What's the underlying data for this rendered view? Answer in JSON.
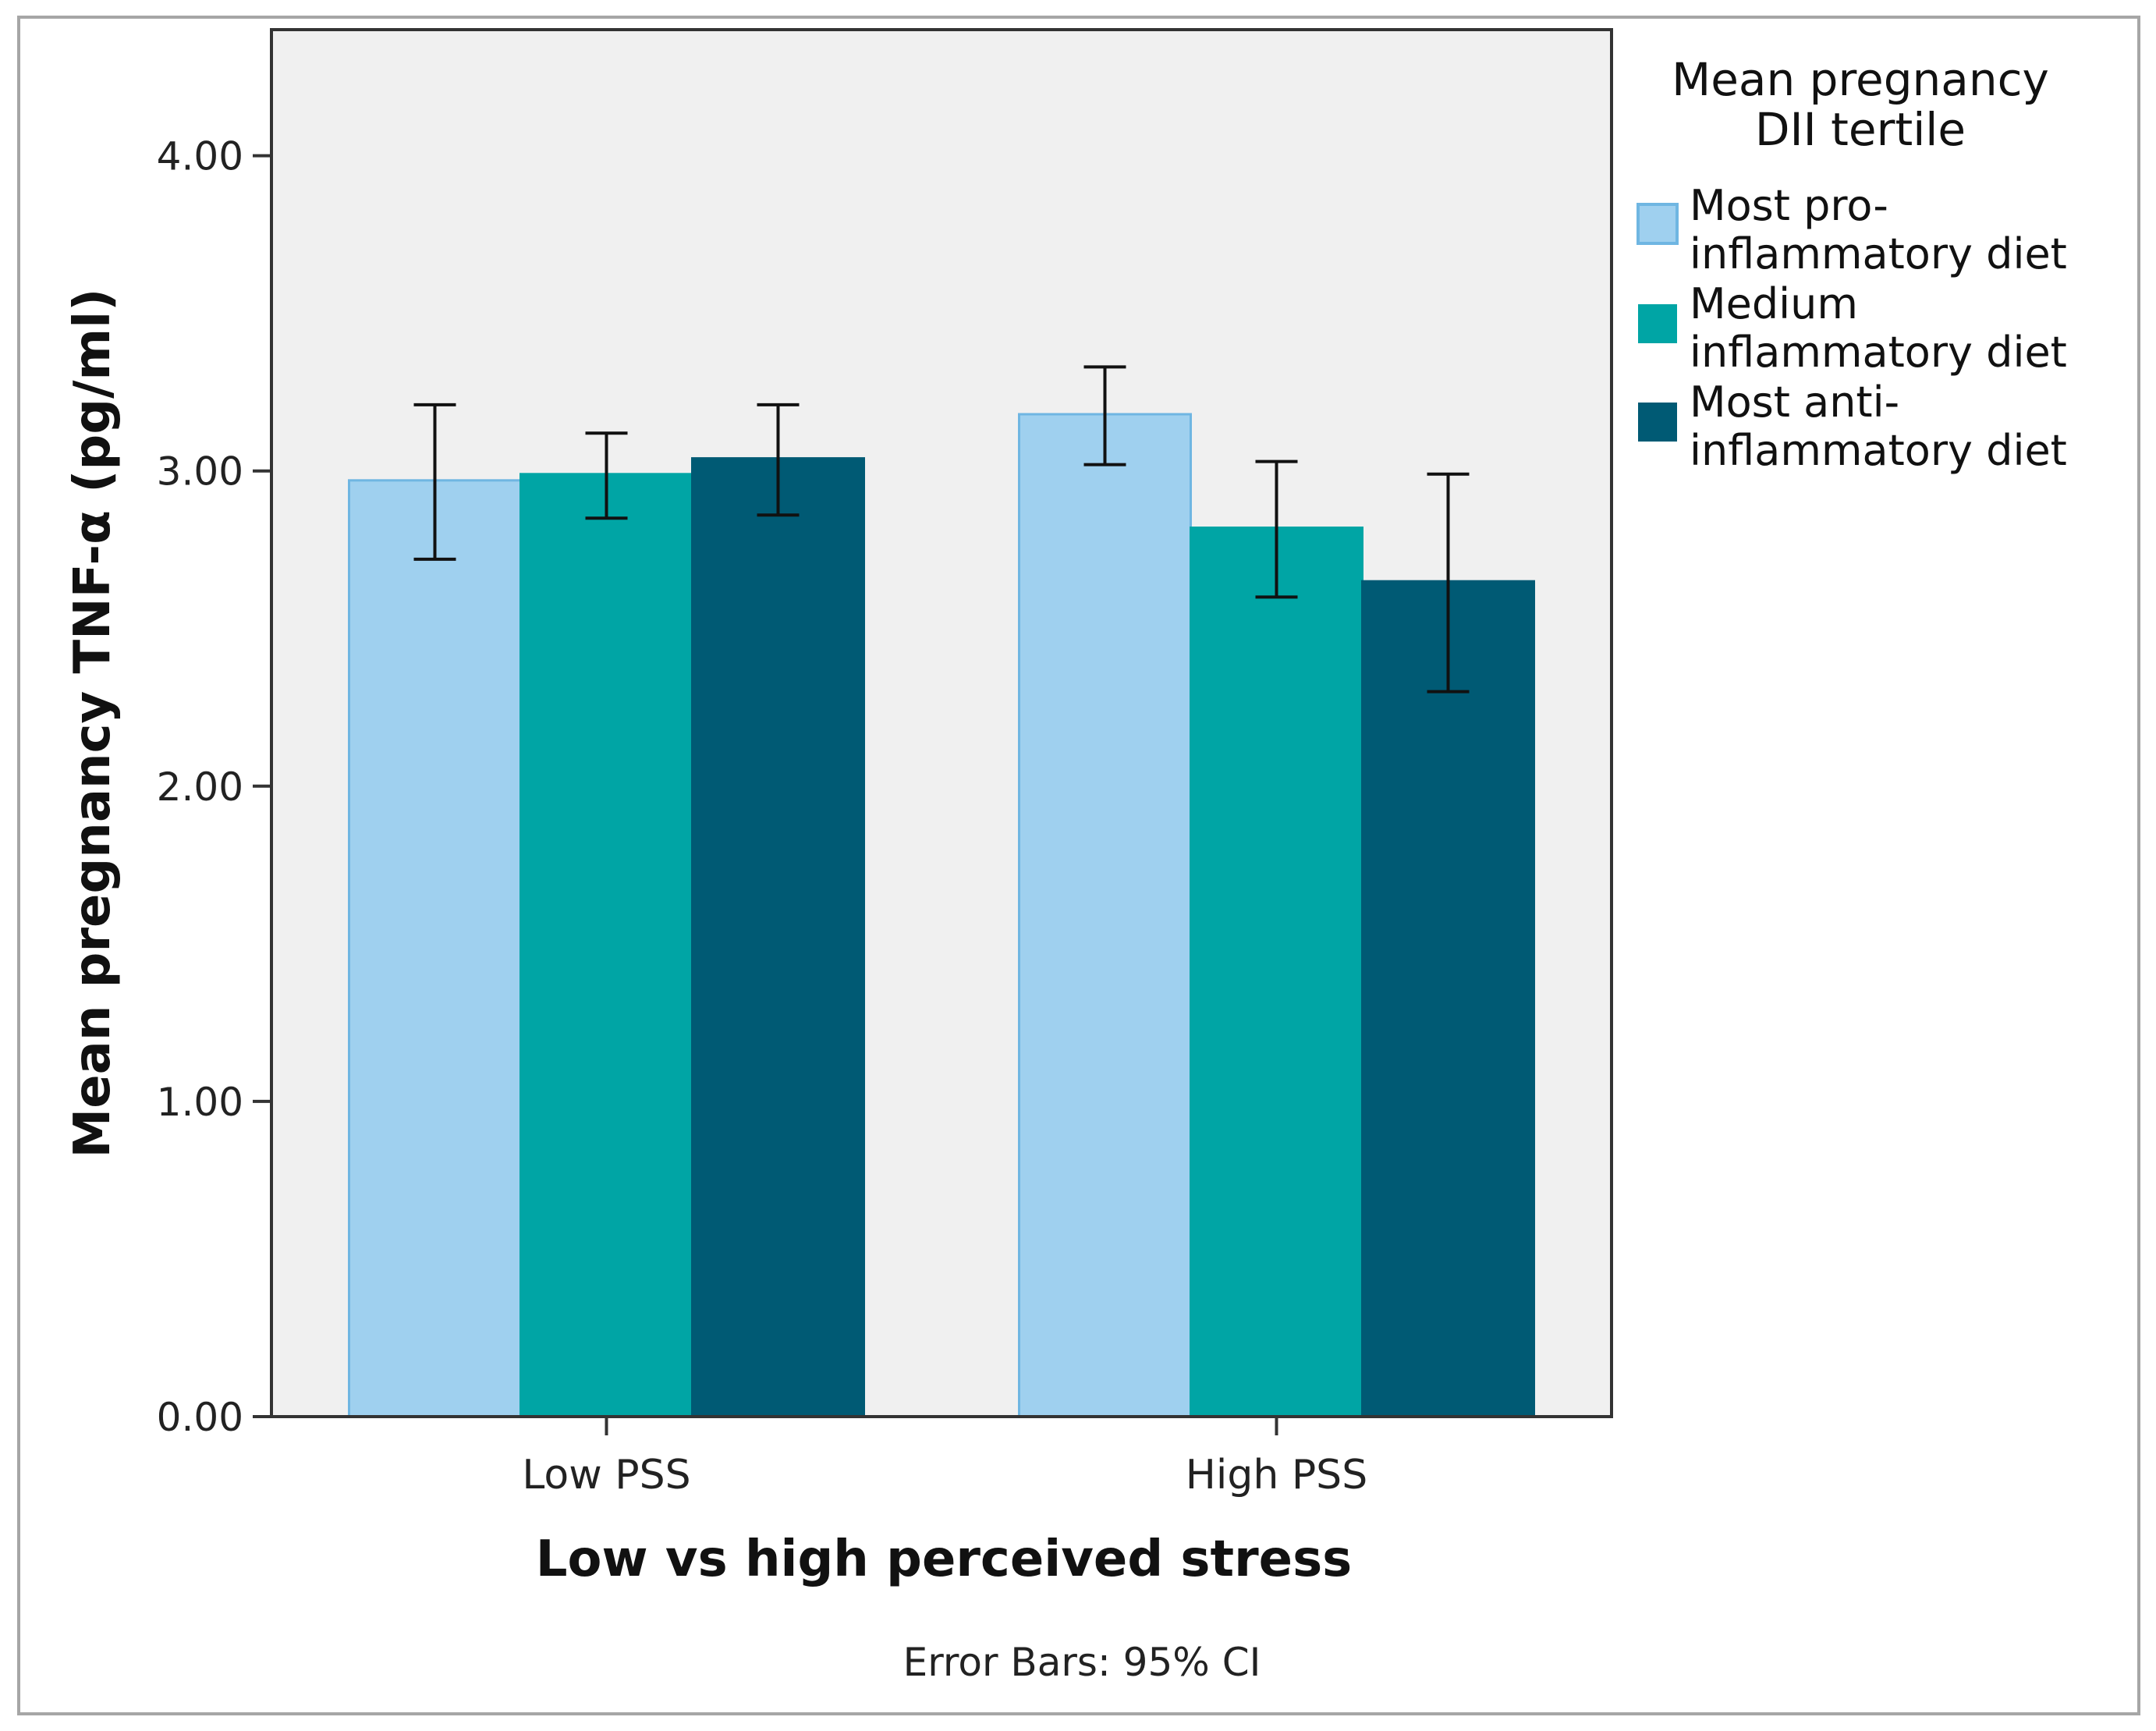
{
  "chart_data": {
    "type": "bar",
    "xlabel": "Low vs high perceived stress",
    "ylabel": "Mean pregnancy TNF-α (pg/ml)",
    "categories": [
      "Low PSS",
      "High PSS"
    ],
    "ylim": [
      0,
      4.4
    ],
    "yticks": [
      0.0,
      1.0,
      2.0,
      3.0,
      4.0
    ],
    "ytick_labels": [
      "0.00",
      "1.00",
      "2.00",
      "3.00",
      "4.00"
    ],
    "grid": false,
    "legend": {
      "title": "Mean pregnancy DII tertile",
      "title_lines": [
        "Mean pregnancy",
        "DII tertile"
      ],
      "placement": "right"
    },
    "series": [
      {
        "name": "Most pro-inflammatory diet",
        "legend_lines": [
          "Most pro-",
          "inflammatory diet"
        ],
        "color": "#9fd0ef",
        "edge": "#6fb6e2",
        "values": [
          2.97,
          3.18
        ],
        "ci_low": [
          2.72,
          3.02
        ],
        "ci_high": [
          3.21,
          3.33
        ]
      },
      {
        "name": "Medium inflammatory diet",
        "legend_lines": [
          "Medium",
          "inflammatory diet"
        ],
        "color": "#00a5a5",
        "edge": "#00a5a5",
        "values": [
          2.99,
          2.82
        ],
        "ci_low": [
          2.85,
          2.6
        ],
        "ci_high": [
          3.12,
          3.03
        ]
      },
      {
        "name": "Most anti-inflammatory diet",
        "legend_lines": [
          "Most anti-",
          "inflammatory diet"
        ],
        "color": "#005a74",
        "edge": "#005a74",
        "values": [
          3.04,
          2.65
        ],
        "ci_low": [
          2.86,
          2.3
        ],
        "ci_high": [
          3.21,
          2.99
        ]
      }
    ],
    "footnote": "Error Bars: 95% CI",
    "colors": {
      "plot_background": "#f0f0f0",
      "axis": "#333333",
      "frame": "#a6a6a6"
    }
  }
}
